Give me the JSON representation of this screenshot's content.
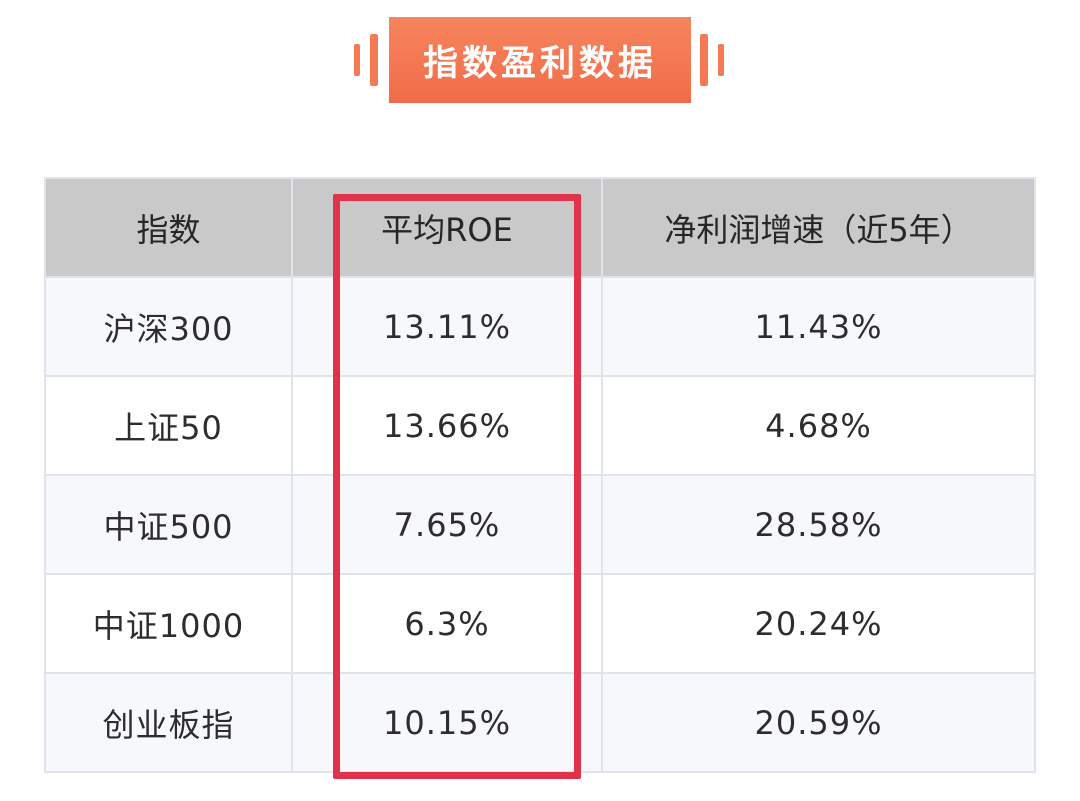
{
  "banner": {
    "title": "指数盈利数据"
  },
  "table": {
    "headers": [
      "指数",
      "平均ROE",
      "净利润增速（近5年）"
    ],
    "rows": [
      [
        "沪深300",
        "13.11%",
        "11.43%"
      ],
      [
        "上证50",
        "13.66%",
        "4.68%"
      ],
      [
        "中证500",
        "7.65%",
        "28.58%"
      ],
      [
        "中证1000",
        "6.3%",
        "20.24%"
      ],
      [
        "创业板指",
        "10.15%",
        "20.59%"
      ]
    ]
  },
  "colors": {
    "banner": "#f47a55",
    "header_bg": "#c9c9c9",
    "highlight_border": "#e0324a"
  }
}
